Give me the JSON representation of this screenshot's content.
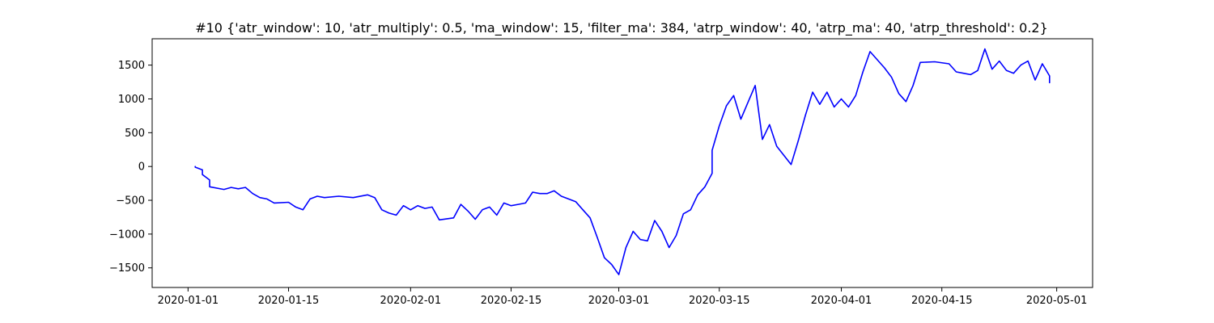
{
  "chart_data": {
    "type": "line",
    "title": "#10 {'atr_window': 10, 'atr_multiply': 0.5, 'ma_window': 15, 'filter_ma': 384, 'atrp_window': 40, 'atrp_ma': 40, 'atrp_threshold': 0.2}",
    "xlabel": "",
    "ylabel": "",
    "grid": false,
    "legend": "none",
    "line_color": "#0000ff",
    "x_ticks": [
      "2020-01-01",
      "2020-01-15",
      "2020-02-01",
      "2020-02-15",
      "2020-03-01",
      "2020-03-15",
      "2020-04-01",
      "2020-04-15",
      "2020-05-01"
    ],
    "y_ticks": [
      -1500,
      -1000,
      -500,
      0,
      500,
      1000,
      1500
    ],
    "xlim": [
      "2019-12-27",
      "2020-05-06"
    ],
    "ylim": [
      -1790,
      1890
    ],
    "series": [
      {
        "points": [
          [
            "2020-01-02",
            0
          ],
          [
            "2020-01-02",
            -10
          ],
          [
            "2020-01-03",
            -50
          ],
          [
            "2020-01-03",
            -120
          ],
          [
            "2020-01-04",
            -200
          ],
          [
            "2020-01-04",
            -300
          ],
          [
            "2020-01-06",
            -340
          ],
          [
            "2020-01-07",
            -310
          ],
          [
            "2020-01-08",
            -330
          ],
          [
            "2020-01-09",
            -310
          ],
          [
            "2020-01-10",
            -400
          ],
          [
            "2020-01-11",
            -460
          ],
          [
            "2020-01-12",
            -480
          ],
          [
            "2020-01-13",
            -540
          ],
          [
            "2020-01-15",
            -530
          ],
          [
            "2020-01-16",
            -600
          ],
          [
            "2020-01-17",
            -640
          ],
          [
            "2020-01-18",
            -480
          ],
          [
            "2020-01-19",
            -440
          ],
          [
            "2020-01-20",
            -460
          ],
          [
            "2020-01-22",
            -440
          ],
          [
            "2020-01-24",
            -460
          ],
          [
            "2020-01-26",
            -420
          ],
          [
            "2020-01-27",
            -460
          ],
          [
            "2020-01-28",
            -640
          ],
          [
            "2020-01-29",
            -690
          ],
          [
            "2020-01-30",
            -720
          ],
          [
            "2020-01-31",
            -580
          ],
          [
            "2020-02-01",
            -640
          ],
          [
            "2020-02-02",
            -580
          ],
          [
            "2020-02-03",
            -620
          ],
          [
            "2020-02-04",
            -600
          ],
          [
            "2020-02-05",
            -790
          ],
          [
            "2020-02-07",
            -760
          ],
          [
            "2020-02-08",
            -560
          ],
          [
            "2020-02-09",
            -660
          ],
          [
            "2020-02-10",
            -780
          ],
          [
            "2020-02-11",
            -640
          ],
          [
            "2020-02-12",
            -600
          ],
          [
            "2020-02-13",
            -720
          ],
          [
            "2020-02-14",
            -540
          ],
          [
            "2020-02-15",
            -580
          ],
          [
            "2020-02-16",
            -560
          ],
          [
            "2020-02-17",
            -540
          ],
          [
            "2020-02-18",
            -380
          ],
          [
            "2020-02-19",
            -400
          ],
          [
            "2020-02-20",
            -400
          ],
          [
            "2020-02-21",
            -360
          ],
          [
            "2020-02-22",
            -440
          ],
          [
            "2020-02-23",
            -480
          ],
          [
            "2020-02-24",
            -520
          ],
          [
            "2020-02-25",
            -640
          ],
          [
            "2020-02-26",
            -760
          ],
          [
            "2020-02-27",
            -1050
          ],
          [
            "2020-02-28",
            -1350
          ],
          [
            "2020-02-29",
            -1450
          ],
          [
            "2020-03-01",
            -1600
          ],
          [
            "2020-03-02",
            -1200
          ],
          [
            "2020-03-03",
            -960
          ],
          [
            "2020-03-04",
            -1080
          ],
          [
            "2020-03-05",
            -1100
          ],
          [
            "2020-03-06",
            -800
          ],
          [
            "2020-03-07",
            -960
          ],
          [
            "2020-03-08",
            -1200
          ],
          [
            "2020-03-09",
            -1020
          ],
          [
            "2020-03-10",
            -700
          ],
          [
            "2020-03-11",
            -640
          ],
          [
            "2020-03-12",
            -420
          ],
          [
            "2020-03-13",
            -300
          ],
          [
            "2020-03-14",
            -100
          ],
          [
            "2020-03-14",
            240
          ],
          [
            "2020-03-15",
            600
          ],
          [
            "2020-03-16",
            900
          ],
          [
            "2020-03-17",
            1050
          ],
          [
            "2020-03-18",
            700
          ],
          [
            "2020-03-19",
            950
          ],
          [
            "2020-03-20",
            1200
          ],
          [
            "2020-03-21",
            400
          ],
          [
            "2020-03-22",
            620
          ],
          [
            "2020-03-23",
            300
          ],
          [
            "2020-03-25",
            30
          ],
          [
            "2020-03-26",
            380
          ],
          [
            "2020-03-27",
            760
          ],
          [
            "2020-03-28",
            1100
          ],
          [
            "2020-03-29",
            920
          ],
          [
            "2020-03-30",
            1100
          ],
          [
            "2020-03-31",
            880
          ],
          [
            "2020-04-01",
            1000
          ],
          [
            "2020-04-02",
            880
          ],
          [
            "2020-04-03",
            1050
          ],
          [
            "2020-04-04",
            1400
          ],
          [
            "2020-04-05",
            1700
          ],
          [
            "2020-04-07",
            1460
          ],
          [
            "2020-04-08",
            1320
          ],
          [
            "2020-04-09",
            1080
          ],
          [
            "2020-04-10",
            960
          ],
          [
            "2020-04-11",
            1200
          ],
          [
            "2020-04-12",
            1540
          ],
          [
            "2020-04-14",
            1550
          ],
          [
            "2020-04-16",
            1520
          ],
          [
            "2020-04-17",
            1400
          ],
          [
            "2020-04-18",
            1380
          ],
          [
            "2020-04-19",
            1360
          ],
          [
            "2020-04-20",
            1420
          ],
          [
            "2020-04-21",
            1740
          ],
          [
            "2020-04-22",
            1440
          ],
          [
            "2020-04-23",
            1560
          ],
          [
            "2020-04-24",
            1420
          ],
          [
            "2020-04-25",
            1380
          ],
          [
            "2020-04-26",
            1500
          ],
          [
            "2020-04-27",
            1560
          ],
          [
            "2020-04-28",
            1280
          ],
          [
            "2020-04-29",
            1520
          ],
          [
            "2020-04-30",
            1340
          ],
          [
            "2020-04-30",
            1240
          ]
        ]
      }
    ]
  }
}
